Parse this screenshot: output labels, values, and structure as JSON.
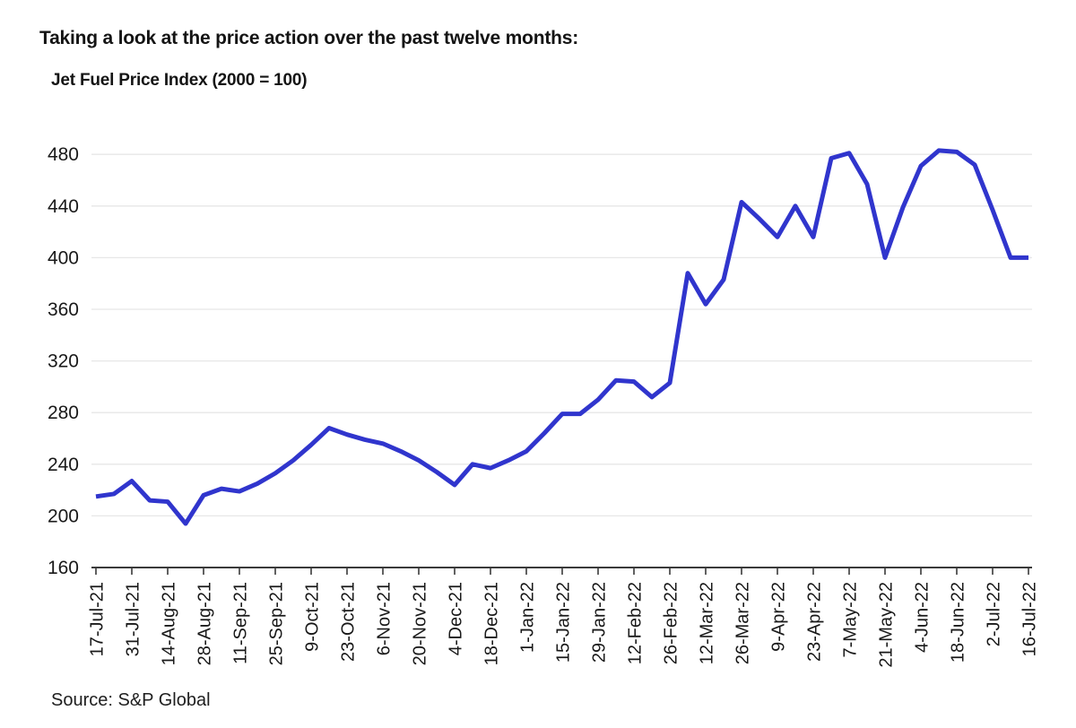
{
  "page": {
    "heading": "Taking a look at the price action over the past twelve months:",
    "source": "Source: S&P Global"
  },
  "chart_data": {
    "type": "line",
    "title": "Jet Fuel Price Index (2000 = 100)",
    "series_name": "Jet Fuel Price Index",
    "legend": "none",
    "grid": "horizontal",
    "x_label_every": 2,
    "ylim": [
      160,
      500
    ],
    "y_ticks": [
      160,
      200,
      240,
      280,
      320,
      360,
      400,
      440,
      480
    ],
    "x": [
      "17-Jul-21",
      "24-Jul-21",
      "31-Jul-21",
      "7-Aug-21",
      "14-Aug-21",
      "21-Aug-21",
      "28-Aug-21",
      "4-Sep-21",
      "11-Sep-21",
      "18-Sep-21",
      "25-Sep-21",
      "2-Oct-21",
      "9-Oct-21",
      "16-Oct-21",
      "23-Oct-21",
      "30-Oct-21",
      "6-Nov-21",
      "13-Nov-21",
      "20-Nov-21",
      "27-Nov-21",
      "4-Dec-21",
      "11-Dec-21",
      "18-Dec-21",
      "25-Dec-21",
      "1-Jan-22",
      "8-Jan-22",
      "15-Jan-22",
      "22-Jan-22",
      "29-Jan-22",
      "5-Feb-22",
      "12-Feb-22",
      "19-Feb-22",
      "26-Feb-22",
      "5-Mar-22",
      "12-Mar-22",
      "19-Mar-22",
      "26-Mar-22",
      "2-Apr-22",
      "9-Apr-22",
      "16-Apr-22",
      "23-Apr-22",
      "30-Apr-22",
      "7-May-22",
      "14-May-22",
      "21-May-22",
      "28-May-22",
      "4-Jun-22",
      "11-Jun-22",
      "18-Jun-22",
      "25-Jun-22",
      "2-Jul-22",
      "9-Jul-22",
      "16-Jul-22"
    ],
    "values": [
      215,
      217,
      227,
      212,
      211,
      194,
      216,
      221,
      219,
      225,
      233,
      243,
      255,
      268,
      263,
      259,
      256,
      250,
      243,
      234,
      224,
      240,
      237,
      243,
      250,
      264,
      279,
      279,
      290,
      305,
      304,
      292,
      303,
      388,
      364,
      383,
      443,
      430,
      416,
      440,
      416,
      477,
      481,
      457,
      400,
      439,
      471,
      483,
      482,
      472,
      437,
      400,
      400
    ],
    "line_color": "#3035cd",
    "grid_color": "#e7e7e7",
    "axis_color": "#3a3a3a",
    "text_color": "#191919"
  }
}
